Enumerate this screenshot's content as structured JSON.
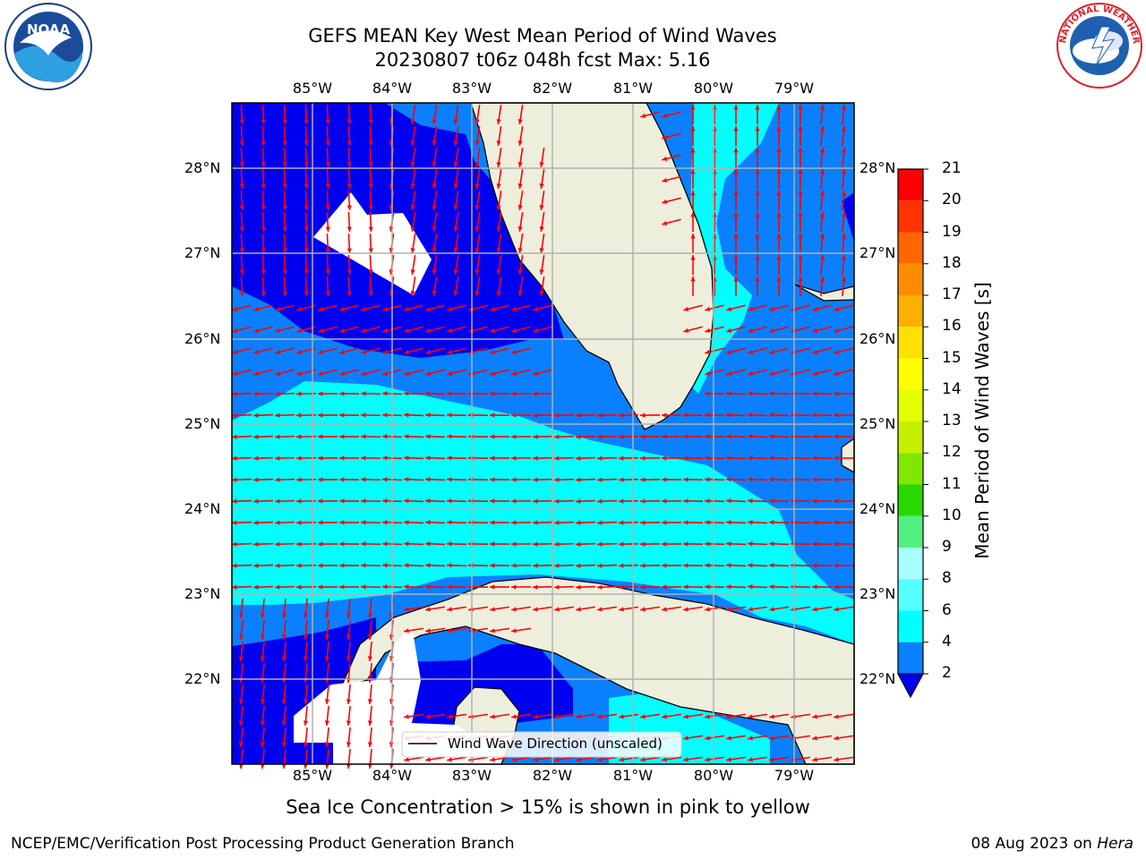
{
  "header": {
    "title_line1": "GEFS MEAN Key West Mean Period of Wind Waves",
    "title_line2": "20230807 t06z 048h fcst   Max: 5.16"
  },
  "logos": {
    "left": {
      "name": "noaa-logo",
      "text": "NOAA"
    },
    "right": {
      "name": "nws-logo",
      "text": "NATIONAL WEATHER SERVICE"
    }
  },
  "map": {
    "lon_labels": [
      "85°W",
      "84°W",
      "83°W",
      "82°W",
      "81°W",
      "80°W",
      "79°W"
    ],
    "lat_labels": [
      "28°N",
      "27°N",
      "26°N",
      "25°N",
      "24°N",
      "23°N",
      "22°N"
    ],
    "legend_label": "Wind Wave Direction (unscaled)",
    "colors": {
      "land": "#eeeedc",
      "period_2_4": "#0a80ff",
      "period_4_6": "#00ffff",
      "period_below_2": "#0000f0",
      "arrow": "#ff0000",
      "grid": "#b0b0b0"
    }
  },
  "colorbar": {
    "label": "Mean Period of Wind Waves [s]",
    "ticks": [
      "21",
      "20",
      "19",
      "18",
      "17",
      "16",
      "15",
      "14",
      "13",
      "12",
      "11",
      "10",
      "9",
      "8",
      "6",
      "4",
      "2"
    ],
    "colors": [
      "#ff0000",
      "#ff2800",
      "#ff5000",
      "#ff7800",
      "#ff9600",
      "#ffb400",
      "#ffdc00",
      "#ffff00",
      "#e6ff00",
      "#c8ff00",
      "#a0f000",
      "#64e600",
      "#00e600",
      "#00d200",
      "#55ff80",
      "#aaffff",
      "#55ffff",
      "#00ffff",
      "#0a80ff",
      "#0000f0"
    ],
    "segments": [
      {
        "from": 20,
        "to": 21,
        "color": "#ff0000"
      },
      {
        "from": 19,
        "to": 20,
        "color": "#ff3300"
      },
      {
        "from": 18,
        "to": 19,
        "color": "#ff6600"
      },
      {
        "from": 17,
        "to": 18,
        "color": "#ff8c00"
      },
      {
        "from": 16,
        "to": 17,
        "color": "#ffb000"
      },
      {
        "from": 15,
        "to": 16,
        "color": "#ffe000"
      },
      {
        "from": 14,
        "to": 15,
        "color": "#ffff00"
      },
      {
        "from": 13,
        "to": 14,
        "color": "#e4ff00"
      },
      {
        "from": 12,
        "to": 13,
        "color": "#c4f000"
      },
      {
        "from": 11,
        "to": 12,
        "color": "#80e800"
      },
      {
        "from": 10,
        "to": 11,
        "color": "#28d800"
      },
      {
        "from": 9,
        "to": 10,
        "color": "#50f080"
      },
      {
        "from": 8,
        "to": 9,
        "color": "#a8ffff"
      },
      {
        "from": 6,
        "to": 8,
        "color": "#55ffff"
      },
      {
        "from": 4,
        "to": 6,
        "color": "#00ffff"
      },
      {
        "from": 2,
        "to": 4,
        "color": "#0a80ff"
      }
    ]
  },
  "note": "Sea Ice Concentration > 15% is shown in pink to yellow",
  "footer": {
    "left": "NCEP/EMC/Verification Post Processing Product Generation Branch",
    "right_date": "08 Aug 2023 on",
    "right_host": "Hera"
  }
}
